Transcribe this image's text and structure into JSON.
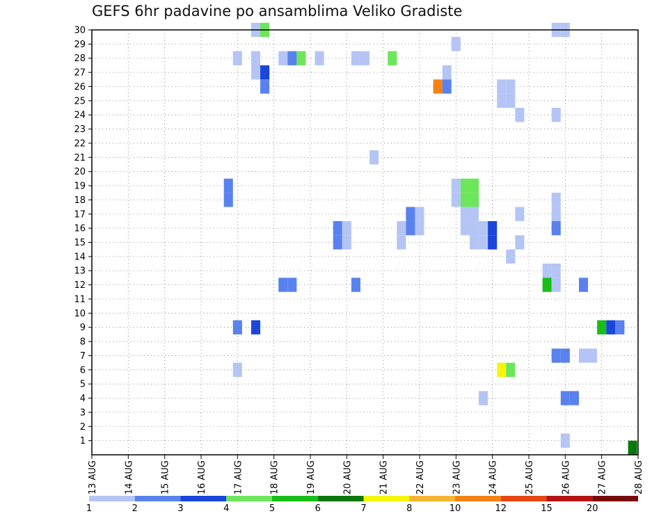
{
  "chart_data": {
    "type": "heatmap",
    "title": "GEFS 6hr padavine po ansamblima Veliko Gradiste",
    "x_tick_labels": [
      "13 AUG",
      "14 AUG",
      "15 AUG",
      "16 AUG",
      "17 AUG",
      "18 AUG",
      "19 AUG",
      "20 AUG",
      "21 AUG",
      "22 AUG",
      "23 AUG",
      "24 AUG",
      "25 AUG",
      "26 AUG",
      "27 AUG",
      "28 AUG"
    ],
    "xlim_days": [
      13,
      28
    ],
    "y_tick_labels": [
      "1",
      "2",
      "3",
      "4",
      "5",
      "6",
      "7",
      "8",
      "9",
      "10",
      "11",
      "12",
      "13",
      "14",
      "15",
      "16",
      "17",
      "18",
      "19",
      "20",
      "21",
      "22",
      "23",
      "24",
      "25",
      "26",
      "27",
      "28",
      "29",
      "30"
    ],
    "ylim": [
      0,
      30
    ],
    "time_step_hours": 6,
    "grid": "dotted",
    "colorbar": {
      "position": "bottom",
      "labels": [
        "1",
        "2",
        "3",
        "4",
        "5",
        "6",
        "7",
        "8",
        "10",
        "12",
        "15",
        "20"
      ],
      "colors": [
        "#b4c5f5",
        "#5a82ee",
        "#1a46dc",
        "#6ce65a",
        "#17be17",
        "#0a780a",
        "#f5f50a",
        "#f5b432",
        "#f58214",
        "#e64614",
        "#b41414",
        "#780a0a"
      ]
    },
    "cells": [
      {
        "member": 30,
        "day": 17.5,
        "value": 1
      },
      {
        "member": 30,
        "day": 17.75,
        "value": 4
      },
      {
        "member": 30,
        "day": 25.75,
        "value": 1
      },
      {
        "member": 30,
        "day": 26.0,
        "value": 1
      },
      {
        "member": 29,
        "day": 23.0,
        "value": 1
      },
      {
        "member": 28,
        "day": 17.0,
        "value": 1
      },
      {
        "member": 28,
        "day": 17.5,
        "value": 1
      },
      {
        "member": 28,
        "day": 18.25,
        "value": 1
      },
      {
        "member": 28,
        "day": 18.5,
        "value": 2
      },
      {
        "member": 28,
        "day": 18.75,
        "value": 4
      },
      {
        "member": 28,
        "day": 19.25,
        "value": 1
      },
      {
        "member": 28,
        "day": 20.25,
        "value": 1
      },
      {
        "member": 28,
        "day": 20.5,
        "value": 1
      },
      {
        "member": 28,
        "day": 21.25,
        "value": 4
      },
      {
        "member": 27,
        "day": 17.5,
        "value": 1
      },
      {
        "member": 27,
        "day": 17.75,
        "value": 3
      },
      {
        "member": 27,
        "day": 22.75,
        "value": 1
      },
      {
        "member": 26,
        "day": 17.75,
        "value": 2
      },
      {
        "member": 26,
        "day": 22.5,
        "value": 10
      },
      {
        "member": 26,
        "day": 22.75,
        "value": 2
      },
      {
        "member": 26,
        "day": 24.25,
        "value": 1
      },
      {
        "member": 26,
        "day": 24.5,
        "value": 1
      },
      {
        "member": 25,
        "day": 24.25,
        "value": 1
      },
      {
        "member": 25,
        "day": 24.5,
        "value": 1
      },
      {
        "member": 24,
        "day": 24.75,
        "value": 1
      },
      {
        "member": 24,
        "day": 25.75,
        "value": 1
      },
      {
        "member": 21,
        "day": 20.75,
        "value": 1
      },
      {
        "member": 19,
        "day": 16.75,
        "value": 2
      },
      {
        "member": 19,
        "day": 23.0,
        "value": 1
      },
      {
        "member": 19,
        "day": 23.25,
        "value": 4
      },
      {
        "member": 19,
        "day": 23.5,
        "value": 4
      },
      {
        "member": 18,
        "day": 16.75,
        "value": 2
      },
      {
        "member": 18,
        "day": 23.0,
        "value": 1
      },
      {
        "member": 18,
        "day": 23.25,
        "value": 4
      },
      {
        "member": 18,
        "day": 23.5,
        "value": 4
      },
      {
        "member": 18,
        "day": 25.75,
        "value": 1
      },
      {
        "member": 17,
        "day": 24.75,
        "value": 1
      },
      {
        "member": 17,
        "day": 25.75,
        "value": 1
      },
      {
        "member": 17,
        "day": 21.75,
        "value": 2
      },
      {
        "member": 17,
        "day": 22.0,
        "value": 1
      },
      {
        "member": 17,
        "day": 23.25,
        "value": 1
      },
      {
        "member": 17,
        "day": 23.5,
        "value": 1
      },
      {
        "member": 16,
        "day": 21.75,
        "value": 2
      },
      {
        "member": 16,
        "day": 22.0,
        "value": 1
      },
      {
        "member": 16,
        "day": 23.25,
        "value": 1
      },
      {
        "member": 16,
        "day": 23.5,
        "value": 1
      },
      {
        "member": 16,
        "day": 23.5,
        "value": 1
      },
      {
        "member": 16,
        "day": 23.75,
        "value": 1
      },
      {
        "member": 16,
        "day": 24.0,
        "value": 3
      },
      {
        "member": 16,
        "day": 25.75,
        "value": 2
      },
      {
        "member": 16,
        "day": 19.75,
        "value": 2
      },
      {
        "member": 16,
        "day": 20.0,
        "value": 1
      },
      {
        "member": 16,
        "day": 21.5,
        "value": 1
      },
      {
        "member": 15,
        "day": 19.75,
        "value": 2
      },
      {
        "member": 15,
        "day": 20.0,
        "value": 1
      },
      {
        "member": 15,
        "day": 21.5,
        "value": 1
      },
      {
        "member": 15,
        "day": 23.5,
        "value": 1
      },
      {
        "member": 15,
        "day": 23.75,
        "value": 1
      },
      {
        "member": 15,
        "day": 24.0,
        "value": 3
      },
      {
        "member": 15,
        "day": 24.75,
        "value": 1
      },
      {
        "member": 14,
        "day": 24.5,
        "value": 1
      },
      {
        "member": 13,
        "day": 25.5,
        "value": 1
      },
      {
        "member": 13,
        "day": 25.75,
        "value": 1
      },
      {
        "member": 12,
        "day": 18.25,
        "value": 2
      },
      {
        "member": 12,
        "day": 18.5,
        "value": 2
      },
      {
        "member": 12,
        "day": 20.25,
        "value": 2
      },
      {
        "member": 12,
        "day": 25.5,
        "value": 5
      },
      {
        "member": 12,
        "day": 25.75,
        "value": 1
      },
      {
        "member": 12,
        "day": 26.5,
        "value": 2
      },
      {
        "member": 9,
        "day": 17.0,
        "value": 2
      },
      {
        "member": 9,
        "day": 17.5,
        "value": 3
      },
      {
        "member": 9,
        "day": 27.0,
        "value": 5
      },
      {
        "member": 9,
        "day": 27.25,
        "value": 3
      },
      {
        "member": 9,
        "day": 27.5,
        "value": 2
      },
      {
        "member": 7,
        "day": 25.75,
        "value": 2
      },
      {
        "member": 7,
        "day": 26.0,
        "value": 2
      },
      {
        "member": 7,
        "day": 26.5,
        "value": 1
      },
      {
        "member": 7,
        "day": 26.75,
        "value": 1
      },
      {
        "member": 6,
        "day": 17.0,
        "value": 1
      },
      {
        "member": 6,
        "day": 24.25,
        "value": 7
      },
      {
        "member": 6,
        "day": 24.5,
        "value": 4
      },
      {
        "member": 4,
        "day": 23.75,
        "value": 1
      },
      {
        "member": 4,
        "day": 26.0,
        "value": 2
      },
      {
        "member": 4,
        "day": 26.25,
        "value": 2
      },
      {
        "member": 1,
        "day": 26.0,
        "value": 1
      },
      {
        "member": 0.5,
        "day": 27.85,
        "value": 6
      }
    ]
  }
}
